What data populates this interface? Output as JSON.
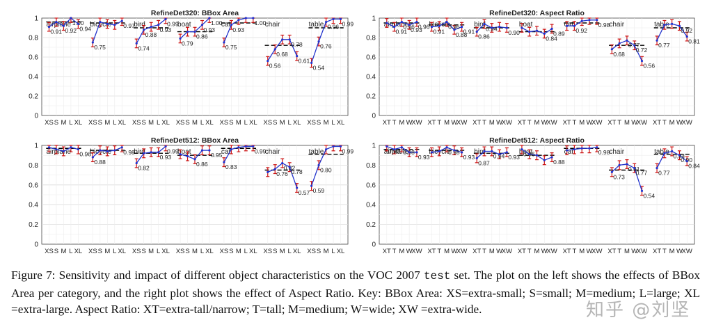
{
  "colors": {
    "line": "#2233cc",
    "error": "#cc1111",
    "grid": "#dcdcdc",
    "axis": "#444444",
    "dash": "#000000"
  },
  "chart_data": [
    {
      "type": "line",
      "title": "RefineDet320: BBox Area",
      "ylim": [
        0,
        1
      ],
      "yticks": [
        "0",
        "0.2",
        "0.4",
        "0.6",
        "0.8",
        "1"
      ],
      "groups": [
        {
          "name": "airplane",
          "ticks": [
            "XS",
            "S",
            "M",
            "L",
            "XL"
          ],
          "values": [
            0.91,
            0.96,
            0.92,
            1.0,
            0.94
          ],
          "labels": [
            "0.91",
            "",
            "0.92",
            "1.00",
            "0.94"
          ],
          "average": 0.96
        },
        {
          "name": "bicycle",
          "ticks": [
            "XS",
            "S",
            "M",
            "L",
            "XL"
          ],
          "values": [
            0.75,
            0.96,
            0.94,
            0.93,
            0.97
          ],
          "labels": [
            "0.75",
            "",
            "",
            "",
            "0.97"
          ],
          "average": 0.95
        },
        {
          "name": "bird",
          "ticks": [
            "XS",
            "S",
            "M",
            "L",
            "XL"
          ],
          "values": [
            0.74,
            0.88,
            0.91,
            0.93,
            0.99
          ],
          "labels": [
            "0.74",
            "0.88",
            "",
            "0.93",
            "0.99"
          ],
          "average": 0.9
        },
        {
          "name": "boat",
          "ticks": [
            "XS",
            "S",
            "M",
            "L",
            "XL"
          ],
          "values": [
            0.79,
            0.86,
            0.86,
            0.93,
            1.0
          ],
          "labels": [
            "0.79",
            "",
            "0.86",
            "0.93",
            "1.00"
          ],
          "average": 0.86
        },
        {
          "name": "cat",
          "ticks": [
            "XS",
            "S",
            "M",
            "L",
            "XL"
          ],
          "values": [
            0.75,
            0.93,
            0.98,
            1.0,
            1.0
          ],
          "labels": [
            "0.75",
            "0.93",
            "",
            "",
            "1.00"
          ],
          "average": 0.95
        },
        {
          "name": "chair",
          "ticks": [
            "XS",
            "S",
            "M",
            "L",
            "XL"
          ],
          "values": [
            0.56,
            0.68,
            0.78,
            0.78,
            0.61
          ],
          "labels": [
            "0.56",
            "0.68",
            "",
            "0.78",
            "0.61"
          ],
          "average": 0.72
        },
        {
          "name": "table",
          "ticks": [
            "XS",
            "S",
            "M",
            "L",
            "XL"
          ],
          "values": [
            0.54,
            0.76,
            0.96,
            0.99,
            0.99
          ],
          "labels": [
            "0.54",
            "0.76",
            "0.96",
            "",
            "0.99"
          ],
          "average": 0.9
        }
      ]
    },
    {
      "type": "line",
      "title": "RefineDet320: Aspect Ratio",
      "ylim": [
        0,
        1
      ],
      "yticks": [
        "0",
        "0.2",
        "0.4",
        "0.6",
        "0.8",
        "1"
      ],
      "groups": [
        {
          "name": "airplane",
          "ticks": [
            "XT",
            "T",
            "M",
            "W",
            "XW"
          ],
          "values": [
            0.95,
            0.91,
            0.96,
            0.93,
            0.96
          ],
          "labels": [
            "",
            "0.91",
            "0.96",
            "0.93",
            "0.96"
          ],
          "average": 0.95
        },
        {
          "name": "bicycle",
          "ticks": [
            "XT",
            "T",
            "M",
            "W",
            "XW"
          ],
          "values": [
            0.91,
            0.92,
            0.96,
            0.88,
            0.91
          ],
          "labels": [
            "0.91",
            "",
            "0.96",
            "0.88",
            "0.91"
          ],
          "average": 0.93
        },
        {
          "name": "bird",
          "ticks": [
            "XT",
            "T",
            "M",
            "W",
            "XW"
          ],
          "values": [
            0.86,
            0.94,
            0.9,
            0.91,
            0.9
          ],
          "labels": [
            "0.86",
            "0.94",
            "",
            "",
            "0.90"
          ],
          "average": 0.9
        },
        {
          "name": "boat",
          "ticks": [
            "XT",
            "T",
            "M",
            "W",
            "XW"
          ],
          "values": [
            0.9,
            0.86,
            0.87,
            0.84,
            0.89
          ],
          "labels": [
            "",
            "",
            "",
            "0.84",
            "0.89"
          ],
          "average": 0.86
        },
        {
          "name": "cat",
          "ticks": [
            "XT",
            "T",
            "M",
            "W",
            "XW"
          ],
          "values": [
            0.92,
            0.92,
            0.97,
            0.98,
            0.98
          ],
          "labels": [
            "",
            "0.92",
            "",
            "",
            "0.98"
          ],
          "average": 0.95
        },
        {
          "name": "chair",
          "ticks": [
            "XT",
            "T",
            "M",
            "W",
            "XW"
          ],
          "values": [
            0.68,
            0.74,
            0.77,
            0.72,
            0.56
          ],
          "labels": [
            "0.68",
            "",
            "0.77",
            "0.72",
            "0.56"
          ],
          "average": 0.72
        },
        {
          "name": "table",
          "ticks": [
            "XT",
            "T",
            "M",
            "W",
            "XW"
          ],
          "values": [
            0.77,
            0.93,
            0.94,
            0.92,
            0.81
          ],
          "labels": [
            "0.77",
            "",
            "",
            "0.92",
            "0.81"
          ],
          "average": 0.9
        }
      ]
    },
    {
      "type": "line",
      "title": "RefineDet512: BBox Area",
      "ylim": [
        0,
        1
      ],
      "yticks": [
        "0",
        "0.2",
        "0.4",
        "0.6",
        "0.8",
        "1"
      ],
      "groups": [
        {
          "name": "airplane",
          "ticks": [
            "XS",
            "S",
            "M",
            "L",
            "XL"
          ],
          "values": [
            0.98,
            0.96,
            0.94,
            0.98,
            0.96
          ],
          "labels": [
            "",
            "",
            "",
            "",
            "0.96"
          ],
          "average": 0.97
        },
        {
          "name": "bicycle",
          "ticks": [
            "XS",
            "S",
            "M",
            "L",
            "XL"
          ],
          "values": [
            0.88,
            0.95,
            0.94,
            0.95,
            0.98
          ],
          "labels": [
            "0.88",
            "",
            "",
            "",
            "0.98"
          ],
          "average": 0.95
        },
        {
          "name": "bird",
          "ticks": [
            "XS",
            "S",
            "M",
            "L",
            "XL"
          ],
          "values": [
            0.82,
            0.92,
            0.93,
            0.93,
            0.99
          ],
          "labels": [
            "0.82",
            "",
            "",
            "0.93",
            "0.99"
          ],
          "average": 0.92
        },
        {
          "name": "boat",
          "ticks": [
            "XS",
            "S",
            "M",
            "L",
            "XL"
          ],
          "values": [
            0.91,
            0.89,
            0.86,
            0.95,
            0.95
          ],
          "labels": [
            "",
            "",
            "0.86",
            "",
            "0.95"
          ],
          "average": 0.9
        },
        {
          "name": "cat",
          "ticks": [
            "XS",
            "S",
            "M",
            "L",
            "XL"
          ],
          "values": [
            0.83,
            0.96,
            0.98,
            0.99,
            0.99
          ],
          "labels": [
            "0.83",
            "",
            "",
            "",
            "0.99"
          ],
          "average": 0.97
        },
        {
          "name": "chair",
          "ticks": [
            "XS",
            "S",
            "M",
            "L",
            "XL"
          ],
          "values": [
            0.73,
            0.76,
            0.82,
            0.78,
            0.57
          ],
          "labels": [
            "",
            "0.76",
            "0.82",
            "0.78",
            "0.57"
          ],
          "average": 0.75
        },
        {
          "name": "table",
          "ticks": [
            "XS",
            "S",
            "M",
            "L",
            "XL"
          ],
          "values": [
            0.59,
            0.8,
            0.96,
            0.99,
            0.99
          ],
          "labels": [
            "0.59",
            "0.80",
            "",
            "",
            "0.99"
          ],
          "average": 0.91
        }
      ]
    },
    {
      "type": "line",
      "title": "RefineDet512: Aspect Ratio",
      "ylim": [
        0,
        1
      ],
      "yticks": [
        "0",
        "0.2",
        "0.4",
        "0.6",
        "0.8",
        "1"
      ],
      "groups": [
        {
          "name": "airplane",
          "ticks": [
            "XT",
            "T",
            "M",
            "W",
            "XW"
          ],
          "values": [
            0.99,
            0.96,
            0.98,
            0.93,
            0.93
          ],
          "labels": [
            "0.99",
            "",
            "0.98",
            "",
            "0.93"
          ],
          "average": 0.96
        },
        {
          "name": "bicycle",
          "ticks": [
            "XT",
            "T",
            "M",
            "W",
            "XW"
          ],
          "values": [
            0.93,
            0.94,
            0.98,
            0.95,
            0.93
          ],
          "labels": [
            "",
            "",
            "0.98",
            "",
            "0.93"
          ],
          "average": 0.95
        },
        {
          "name": "bird",
          "ticks": [
            "XT",
            "T",
            "M",
            "W",
            "XW"
          ],
          "values": [
            0.87,
            0.94,
            0.94,
            0.91,
            0.93
          ],
          "labels": [
            "0.87",
            "",
            "0.94",
            "",
            "0.93"
          ],
          "average": 0.92
        },
        {
          "name": "boat",
          "ticks": [
            "XT",
            "T",
            "M",
            "W",
            "XW"
          ],
          "values": [
            0.96,
            0.91,
            0.9,
            0.85,
            0.88
          ],
          "labels": [
            "0.96",
            "",
            "",
            "",
            "0.88"
          ],
          "average": 0.9
        },
        {
          "name": "cat",
          "ticks": [
            "XT",
            "T",
            "M",
            "W",
            "XW"
          ],
          "values": [
            0.95,
            0.96,
            0.97,
            0.97,
            0.98
          ],
          "labels": [
            "",
            "",
            "",
            "",
            "0.98"
          ],
          "average": 0.97
        },
        {
          "name": "chair",
          "ticks": [
            "XT",
            "T",
            "M",
            "W",
            "XW"
          ],
          "values": [
            0.73,
            0.8,
            0.81,
            0.77,
            0.54
          ],
          "labels": [
            "0.73",
            "",
            "0.81",
            "0.77",
            "0.54"
          ],
          "average": 0.75
        },
        {
          "name": "table",
          "ticks": [
            "XT",
            "T",
            "M",
            "W",
            "XW"
          ],
          "values": [
            0.77,
            0.92,
            0.94,
            0.9,
            0.84
          ],
          "labels": [
            "0.77",
            "",
            "0.94",
            "0.90",
            "0.84"
          ],
          "average": 0.91
        }
      ]
    }
  ],
  "caption": {
    "lead": "Figure 7: Sensitivity and impact of different object characteristics on the VOC 2007 ",
    "code": "test",
    "rest": " set. The plot on the left shows the effects of BBox Area per category, and the right plot shows the effect of Aspect Ratio. Key: BBox Area: XS=extra-small; S=small; M=medium; L=large; XL =extra-large. Aspect Ratio: XT=extra-tall/narrow; T=tall; M=medium; W=wide; XW =extra-wide."
  },
  "watermark": "知乎 @刘坚"
}
